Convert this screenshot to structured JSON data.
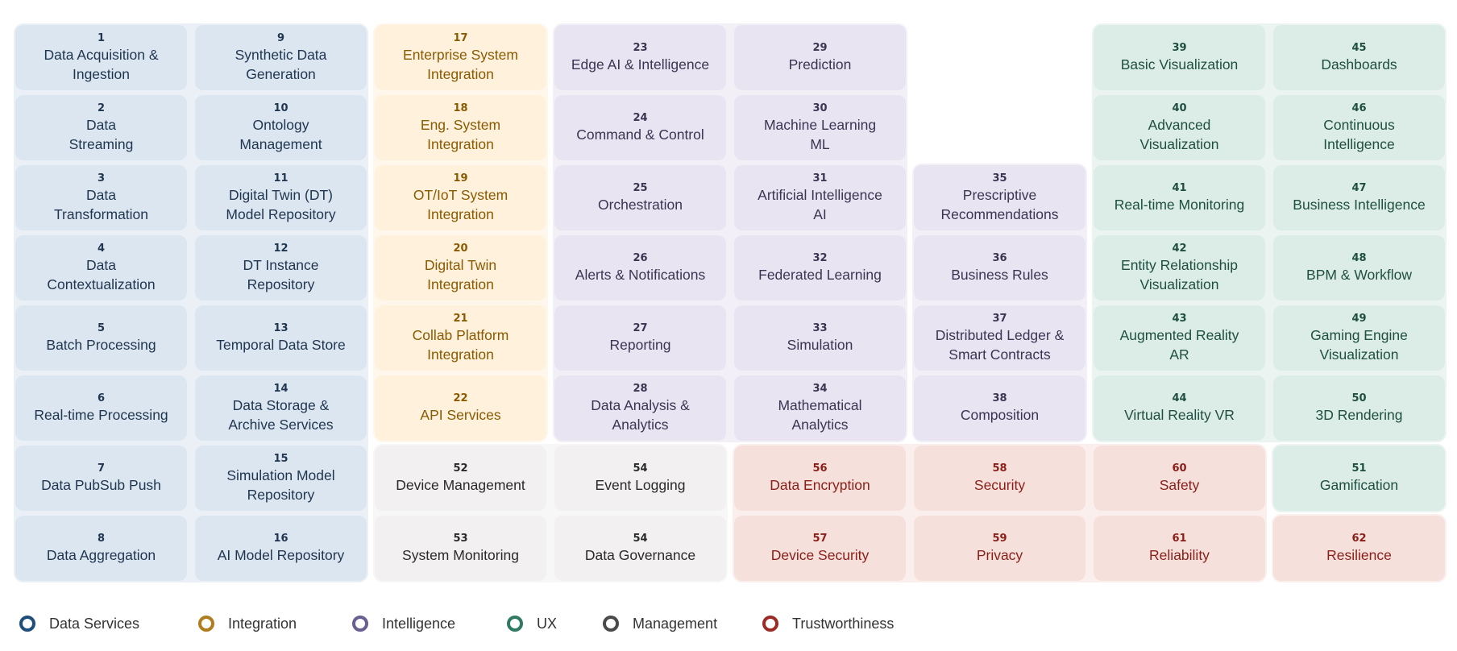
{
  "categories": [
    {
      "key": "data",
      "name": "Data Services",
      "color": "#1f4e79",
      "fill": "#dce6f0",
      "bg": "#eaf0f6",
      "text": "#1f3550"
    },
    {
      "key": "integration",
      "name": "Integration",
      "color": "#b07d1f",
      "fill": "#fff1dc",
      "bg": "#fff7ec",
      "text": "#8a5a00"
    },
    {
      "key": "intelligence",
      "name": "Intelligence",
      "color": "#6b5e91",
      "fill": "#e9e4f1",
      "bg": "#f2eff7",
      "text": "#3a3552"
    },
    {
      "key": "ux",
      "name": "UX",
      "color": "#2f7a63",
      "fill": "#dcece6",
      "bg": "#ebf4f0",
      "text": "#1e4f40"
    },
    {
      "key": "management",
      "name": "Management",
      "color": "#4a4a4a",
      "fill": "#f2f0f0",
      "bg": "#f8f7f7",
      "text": "#2a2a2a"
    },
    {
      "key": "trust",
      "name": "Trustworthiness",
      "color": "#9a2b25",
      "fill": "#f6e0dc",
      "bg": "#fbefed",
      "text": "#8a1f18"
    }
  ],
  "cells": [
    {
      "num": "1",
      "label": "Data Acquisition &\nIngestion",
      "cat": "data",
      "col": 0,
      "row": 0
    },
    {
      "num": "2",
      "label": "Data\nStreaming",
      "cat": "data",
      "col": 0,
      "row": 1
    },
    {
      "num": "3",
      "label": "Data\nTransformation",
      "cat": "data",
      "col": 0,
      "row": 2
    },
    {
      "num": "4",
      "label": "Data\nContextualization",
      "cat": "data",
      "col": 0,
      "row": 3
    },
    {
      "num": "5",
      "label": "Batch Processing",
      "cat": "data",
      "col": 0,
      "row": 4
    },
    {
      "num": "6",
      "label": "Real-time Processing",
      "cat": "data",
      "col": 0,
      "row": 5
    },
    {
      "num": "7",
      "label": "Data PubSub Push",
      "cat": "data",
      "col": 0,
      "row": 6
    },
    {
      "num": "8",
      "label": "Data Aggregation",
      "cat": "data",
      "col": 0,
      "row": 7
    },
    {
      "num": "9",
      "label": "Synthetic Data\nGeneration",
      "cat": "data",
      "col": 1,
      "row": 0
    },
    {
      "num": "10",
      "label": "Ontology\nManagement",
      "cat": "data",
      "col": 1,
      "row": 1
    },
    {
      "num": "11",
      "label": "Digital Twin (DT)\nModel Repository",
      "cat": "data",
      "col": 1,
      "row": 2
    },
    {
      "num": "12",
      "label": "DT Instance\nRepository",
      "cat": "data",
      "col": 1,
      "row": 3
    },
    {
      "num": "13",
      "label": "Temporal Data Store",
      "cat": "data",
      "col": 1,
      "row": 4
    },
    {
      "num": "14",
      "label": "Data Storage &\nArchive Services",
      "cat": "data",
      "col": 1,
      "row": 5
    },
    {
      "num": "15",
      "label": "Simulation Model\nRepository",
      "cat": "data",
      "col": 1,
      "row": 6
    },
    {
      "num": "16",
      "label": "AI Model Repository",
      "cat": "data",
      "col": 1,
      "row": 7
    },
    {
      "num": "17",
      "label": "Enterprise System\nIntegration",
      "cat": "integration",
      "col": 2,
      "row": 0
    },
    {
      "num": "18",
      "label": "Eng. System\nIntegration",
      "cat": "integration",
      "col": 2,
      "row": 1
    },
    {
      "num": "19",
      "label": "OT/IoT System\nIntegration",
      "cat": "integration",
      "col": 2,
      "row": 2
    },
    {
      "num": "20",
      "label": "Digital Twin\nIntegration",
      "cat": "integration",
      "col": 2,
      "row": 3
    },
    {
      "num": "21",
      "label": "Collab Platform\nIntegration",
      "cat": "integration",
      "col": 2,
      "row": 4
    },
    {
      "num": "22",
      "label": "API Services",
      "cat": "integration",
      "col": 2,
      "row": 5
    },
    {
      "num": "23",
      "label": "Edge AI & Intelligence",
      "cat": "intelligence",
      "col": 3,
      "row": 0
    },
    {
      "num": "24",
      "label": "Command & Control",
      "cat": "intelligence",
      "col": 3,
      "row": 1
    },
    {
      "num": "25",
      "label": "Orchestration",
      "cat": "intelligence",
      "col": 3,
      "row": 2
    },
    {
      "num": "26",
      "label": "Alerts & Notifications",
      "cat": "intelligence",
      "col": 3,
      "row": 3
    },
    {
      "num": "27",
      "label": "Reporting",
      "cat": "intelligence",
      "col": 3,
      "row": 4
    },
    {
      "num": "28",
      "label": "Data Analysis &\nAnalytics",
      "cat": "intelligence",
      "col": 3,
      "row": 5
    },
    {
      "num": "29",
      "label": "Prediction",
      "cat": "intelligence",
      "col": 4,
      "row": 0
    },
    {
      "num": "30",
      "label": "Machine Learning\nML",
      "cat": "intelligence",
      "col": 4,
      "row": 1
    },
    {
      "num": "31",
      "label": "Artificial Intelligence\nAI",
      "cat": "intelligence",
      "col": 4,
      "row": 2
    },
    {
      "num": "32",
      "label": "Federated Learning",
      "cat": "intelligence",
      "col": 4,
      "row": 3
    },
    {
      "num": "33",
      "label": "Simulation",
      "cat": "intelligence",
      "col": 4,
      "row": 4
    },
    {
      "num": "34",
      "label": "Mathematical\nAnalytics",
      "cat": "intelligence",
      "col": 4,
      "row": 5
    },
    {
      "num": "35",
      "label": "Prescriptive\nRecommendations",
      "cat": "intelligence",
      "col": 5,
      "row": 2
    },
    {
      "num": "36",
      "label": "Business Rules",
      "cat": "intelligence",
      "col": 5,
      "row": 3
    },
    {
      "num": "37",
      "label": "Distributed Ledger &\nSmart Contracts",
      "cat": "intelligence",
      "col": 5,
      "row": 4
    },
    {
      "num": "38",
      "label": "Composition",
      "cat": "intelligence",
      "col": 5,
      "row": 5
    },
    {
      "num": "39",
      "label": "Basic Visualization",
      "cat": "ux",
      "col": 6,
      "row": 0
    },
    {
      "num": "40",
      "label": "Advanced\nVisualization",
      "cat": "ux",
      "col": 6,
      "row": 1
    },
    {
      "num": "41",
      "label": "Real-time Monitoring",
      "cat": "ux",
      "col": 6,
      "row": 2
    },
    {
      "num": "42",
      "label": "Entity Relationship\nVisualization",
      "cat": "ux",
      "col": 6,
      "row": 3
    },
    {
      "num": "43",
      "label": "Augmented Reality\nAR",
      "cat": "ux",
      "col": 6,
      "row": 4
    },
    {
      "num": "44",
      "label": "Virtual Reality VR",
      "cat": "ux",
      "col": 6,
      "row": 5
    },
    {
      "num": "45",
      "label": "Dashboards",
      "cat": "ux",
      "col": 7,
      "row": 0
    },
    {
      "num": "46",
      "label": "Continuous\nIntelligence",
      "cat": "ux",
      "col": 7,
      "row": 1
    },
    {
      "num": "47",
      "label": "Business Intelligence",
      "cat": "ux",
      "col": 7,
      "row": 2
    },
    {
      "num": "48",
      "label": "BPM & Workflow",
      "cat": "ux",
      "col": 7,
      "row": 3
    },
    {
      "num": "49",
      "label": "Gaming Engine\nVisualization",
      "cat": "ux",
      "col": 7,
      "row": 4
    },
    {
      "num": "50",
      "label": "3D Rendering",
      "cat": "ux",
      "col": 7,
      "row": 5
    },
    {
      "num": "51",
      "label": "Gamification",
      "cat": "ux",
      "col": 7,
      "row": 6
    },
    {
      "num": "52",
      "label": "Device Management",
      "cat": "management",
      "col": 2,
      "row": 6
    },
    {
      "num": "53",
      "label": "System Monitoring",
      "cat": "management",
      "col": 2,
      "row": 7
    },
    {
      "num": "54",
      "label": "Event Logging",
      "cat": "management",
      "col": 3,
      "row": 6
    },
    {
      "num": "54",
      "label": "Data Governance",
      "cat": "management",
      "col": 3,
      "row": 7
    },
    {
      "num": "56",
      "label": "Data Encryption",
      "cat": "trust",
      "col": 4,
      "row": 6
    },
    {
      "num": "57",
      "label": "Device Security",
      "cat": "trust",
      "col": 4,
      "row": 7
    },
    {
      "num": "58",
      "label": "Security",
      "cat": "trust",
      "col": 5,
      "row": 6
    },
    {
      "num": "59",
      "label": "Privacy",
      "cat": "trust",
      "col": 5,
      "row": 7
    },
    {
      "num": "60",
      "label": "Safety",
      "cat": "trust",
      "col": 6,
      "row": 6
    },
    {
      "num": "61",
      "label": "Reliability",
      "cat": "trust",
      "col": 6,
      "row": 7
    },
    {
      "num": "62",
      "label": "Resilience",
      "cat": "trust",
      "col": 7,
      "row": 7
    }
  ]
}
